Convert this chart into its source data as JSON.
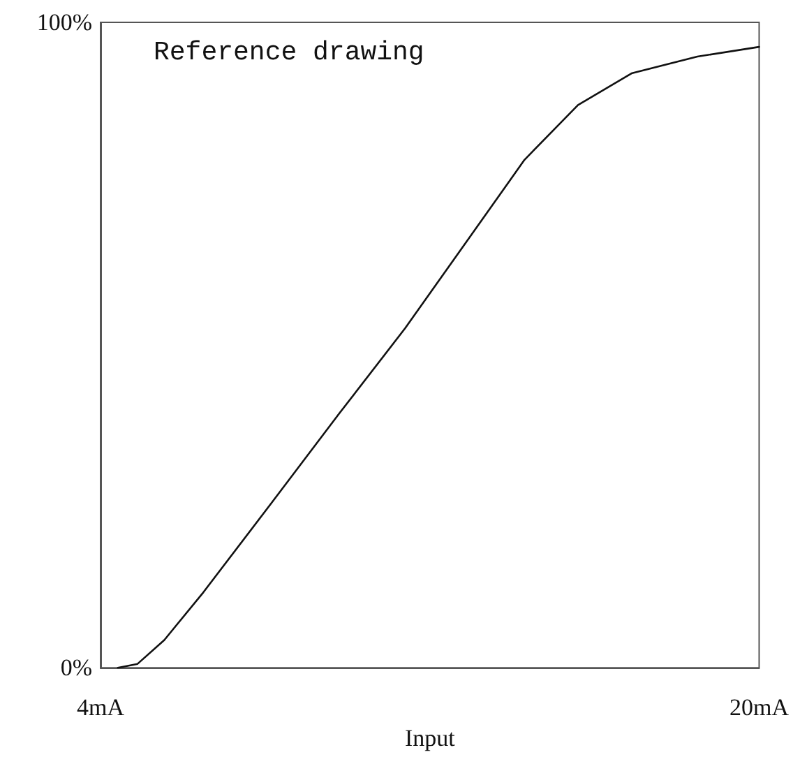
{
  "chart_data": {
    "type": "line",
    "xlabel": "Input",
    "annotations": [
      "Reference drawing"
    ],
    "x": [
      4.42,
      4.9,
      5.55,
      6.5,
      8.15,
      9.8,
      11.4,
      13.0,
      14.3,
      15.6,
      16.9,
      18.5,
      20
    ],
    "series": [
      {
        "color": "#111111",
        "values": [
          0,
          0.6,
          4.3,
          11.7,
          25.5,
          39.4,
          52.6,
          67,
          78.7,
          87.2,
          92.1,
          94.7,
          96.2
        ]
      }
    ],
    "xlim": [
      4,
      20
    ],
    "ylim": [
      0,
      100
    ],
    "xticks": [
      {
        "value": 4,
        "label": "4mA"
      },
      {
        "value": 20,
        "label": "20mA"
      }
    ],
    "yticks": [
      {
        "value": 0,
        "label": "0%"
      },
      {
        "value": 100,
        "label": "100%"
      }
    ],
    "grid": false,
    "marker": "none",
    "line_style": "solid"
  }
}
